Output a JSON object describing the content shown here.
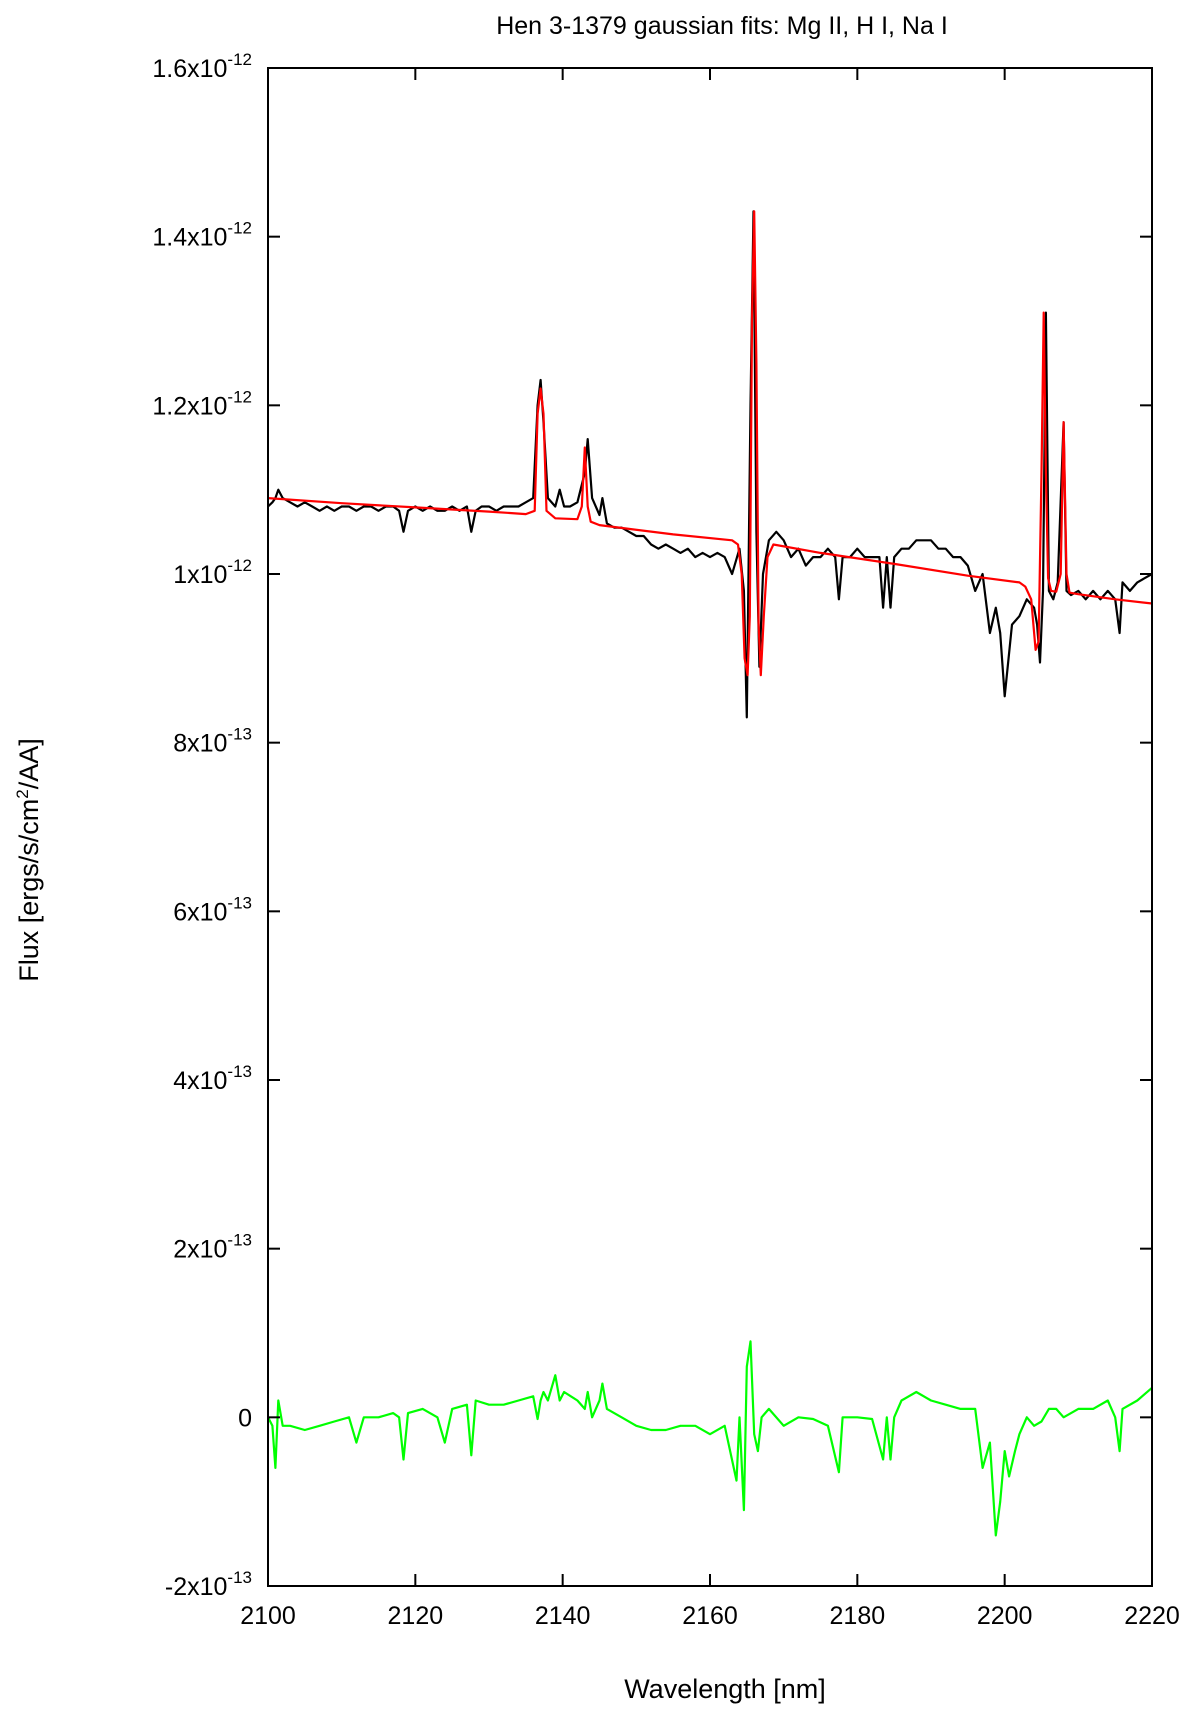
{
  "chart_data": {
    "type": "line",
    "title": "Hen 3-1379 gaussian fits: Mg II, H I, Na I",
    "xlabel": "Wavelength [nm]",
    "ylabel": {
      "base": "Flux [ergs/s/cm",
      "sup": "2",
      "rest": "/AA]"
    },
    "xlim": [
      2100,
      2220
    ],
    "ylim": [
      -2e-13,
      1.6e-12
    ],
    "grid": false,
    "x_ticks": [
      {
        "value": 2100,
        "label": "2100"
      },
      {
        "value": 2120,
        "label": "2120"
      },
      {
        "value": 2140,
        "label": "2140"
      },
      {
        "value": 2160,
        "label": "2160"
      },
      {
        "value": 2180,
        "label": "2180"
      },
      {
        "value": 2200,
        "label": "2200"
      },
      {
        "value": 2220,
        "label": "2220"
      }
    ],
    "y_ticks": [
      {
        "value": -2e-13,
        "mant": "-2x10",
        "exp": "-13"
      },
      {
        "value": 0,
        "mant": "0",
        "exp": ""
      },
      {
        "value": 2e-13,
        "mant": "2x10",
        "exp": "-13"
      },
      {
        "value": 4e-13,
        "mant": "4x10",
        "exp": "-13"
      },
      {
        "value": 6e-13,
        "mant": "6x10",
        "exp": "-13"
      },
      {
        "value": 8e-13,
        "mant": "8x10",
        "exp": "-13"
      },
      {
        "value": 1e-12,
        "mant": "1x10",
        "exp": "-12"
      },
      {
        "value": 1.2e-12,
        "mant": "1.2x10",
        "exp": "-12"
      },
      {
        "value": 1.4e-12,
        "mant": "1.4x10",
        "exp": "-12"
      },
      {
        "value": 1.6e-12,
        "mant": "1.6x10",
        "exp": "-12"
      }
    ],
    "series": [
      {
        "color": "#000000",
        "x": [
          2100,
          2100.6,
          2101,
          2101.4,
          2102,
          2103,
          2104,
          2105,
          2106,
          2107,
          2108,
          2109,
          2110,
          2111,
          2112,
          2113,
          2114,
          2115,
          2116,
          2117,
          2117.8,
          2118.4,
          2119,
          2120,
          2121,
          2122,
          2123,
          2124,
          2125,
          2126,
          2127,
          2127.6,
          2128.2,
          2129,
          2130,
          2131,
          2132,
          2133,
          2134,
          2135,
          2136,
          2136.6,
          2137,
          2137.4,
          2138,
          2139,
          2139.6,
          2140.2,
          2141,
          2142,
          2143,
          2143.4,
          2144,
          2145,
          2145.4,
          2146,
          2147,
          2148,
          2149,
          2150,
          2151,
          2152,
          2153,
          2154,
          2155,
          2156,
          2157,
          2158,
          2159,
          2160,
          2161,
          2162,
          2163,
          2164,
          2164.6,
          2165,
          2165.5,
          2165.9,
          2166.3,
          2166.7,
          2167.2,
          2168,
          2169,
          2170,
          2171,
          2172,
          2173,
          2174,
          2175,
          2176,
          2177,
          2177.5,
          2178,
          2179,
          2180,
          2181,
          2182,
          2183,
          2183.5,
          2184,
          2184.5,
          2185,
          2186,
          2187,
          2188,
          2189,
          2190,
          2191,
          2192,
          2193,
          2194,
          2195,
          2196,
          2197,
          2198,
          2198.8,
          2199.4,
          2200,
          2201,
          2202,
          2203,
          2204,
          2204.4,
          2204.8,
          2205.2,
          2205.6,
          2206,
          2206.6,
          2207.2,
          2208,
          2208.4,
          2209,
          2210,
          2211,
          2212,
          2213,
          2214,
          2215,
          2215.6,
          2216,
          2217,
          2218,
          2219,
          2220
        ],
        "y": [
          1.08e-12,
          1.085e-12,
          1.09e-12,
          1.1e-12,
          1.09e-12,
          1.085e-12,
          1.08e-12,
          1.085e-12,
          1.08e-12,
          1.075e-12,
          1.08e-12,
          1.075e-12,
          1.08e-12,
          1.08e-12,
          1.075e-12,
          1.08e-12,
          1.08e-12,
          1.075e-12,
          1.08e-12,
          1.08e-12,
          1.075e-12,
          1.05e-12,
          1.075e-12,
          1.08e-12,
          1.075e-12,
          1.08e-12,
          1.075e-12,
          1.075e-12,
          1.08e-12,
          1.075e-12,
          1.08e-12,
          1.05e-12,
          1.075e-12,
          1.08e-12,
          1.08e-12,
          1.075e-12,
          1.08e-12,
          1.08e-12,
          1.08e-12,
          1.085e-12,
          1.09e-12,
          1.2e-12,
          1.23e-12,
          1.18e-12,
          1.09e-12,
          1.08e-12,
          1.1e-12,
          1.08e-12,
          1.08e-12,
          1.085e-12,
          1.12e-12,
          1.16e-12,
          1.09e-12,
          1.07e-12,
          1.09e-12,
          1.06e-12,
          1.055e-12,
          1.055e-12,
          1.05e-12,
          1.045e-12,
          1.045e-12,
          1.035e-12,
          1.03e-12,
          1.035e-12,
          1.03e-12,
          1.025e-12,
          1.03e-12,
          1.02e-12,
          1.025e-12,
          1.02e-12,
          1.025e-12,
          1.02e-12,
          1e-12,
          1.03e-12,
          9.8e-13,
          8.3e-13,
          1.2e-12,
          1.43e-12,
          1.05e-12,
          8.9e-13,
          1e-12,
          1.04e-12,
          1.05e-12,
          1.04e-12,
          1.02e-12,
          1.03e-12,
          1.01e-12,
          1.02e-12,
          1.02e-12,
          1.03e-12,
          1.02e-12,
          9.7e-13,
          1.02e-12,
          1.02e-12,
          1.03e-12,
          1.02e-12,
          1.02e-12,
          1.02e-12,
          9.6e-13,
          1.02e-12,
          9.6e-13,
          1.02e-12,
          1.03e-12,
          1.03e-12,
          1.04e-12,
          1.04e-12,
          1.04e-12,
          1.03e-12,
          1.03e-12,
          1.02e-12,
          1.02e-12,
          1.01e-12,
          9.8e-13,
          1e-12,
          9.3e-13,
          9.6e-13,
          9.3e-13,
          8.55e-13,
          9.4e-13,
          9.5e-13,
          9.7e-13,
          9.6e-13,
          9.4e-13,
          8.95e-13,
          9.8e-13,
          1.31e-12,
          9.8e-13,
          9.7e-13,
          9.9e-13,
          1.18e-12,
          9.8e-13,
          9.75e-13,
          9.8e-13,
          9.7e-13,
          9.8e-13,
          9.7e-13,
          9.8e-13,
          9.7e-13,
          9.3e-13,
          9.9e-13,
          9.8e-13,
          9.9e-13,
          9.95e-13,
          1e-12
        ]
      },
      {
        "color": "#ff0000",
        "x": [
          2100,
          2110,
          2120,
          2130,
          2135,
          2136.2,
          2136.6,
          2137,
          2137.4,
          2137.8,
          2139,
          2142,
          2142.6,
          2143,
          2143.4,
          2143.8,
          2145,
          2155,
          2163,
          2163.8,
          2164.3,
          2164.7,
          2165.1,
          2165.4,
          2165.7,
          2166,
          2166.3,
          2166.6,
          2166.9,
          2167.3,
          2167.8,
          2168.6,
          2175,
          2185,
          2195,
          2202,
          2202.8,
          2203.6,
          2204.2,
          2204.6,
          2205,
          2205.3,
          2205.6,
          2205.9,
          2206.3,
          2207,
          2207.6,
          2208,
          2208.4,
          2208.8,
          2209.4,
          2210,
          2215,
          2220
        ],
        "y": [
          1.09e-12,
          1.084e-12,
          1.079e-12,
          1.074e-12,
          1.071e-12,
          1.075e-12,
          1.19e-12,
          1.22e-12,
          1.19e-12,
          1.075e-12,
          1.066e-12,
          1.065e-12,
          1.08e-12,
          1.15e-12,
          1.08e-12,
          1.062e-12,
          1.058e-12,
          1.047e-12,
          1.04e-12,
          1.035e-12,
          1e-12,
          9e-13,
          8.8e-13,
          9.5e-13,
          1.3e-12,
          1.43e-12,
          1.25e-12,
          9.4e-13,
          8.8e-13,
          9.5e-13,
          1.02e-12,
          1.035e-12,
          1.025e-12,
          1.012e-12,
          9.98e-13,
          9.9e-13,
          9.85e-13,
          9.7e-13,
          9.1e-13,
          9.2e-13,
          1.12e-12,
          1.31e-12,
          1.12e-12,
          9.95e-13,
          9.8e-13,
          9.79e-13,
          1e-12,
          1.18e-12,
          1e-12,
          9.78e-13,
          9.77e-13,
          9.76e-13,
          9.7e-13,
          9.65e-13
        ]
      },
      {
        "color": "#00ff00",
        "x": [
          2100,
          2100.6,
          2101,
          2101.4,
          2102,
          2103,
          2105,
          2107,
          2109,
          2111,
          2112,
          2113,
          2115,
          2117,
          2117.8,
          2118.4,
          2119,
          2121,
          2123,
          2124,
          2125,
          2127,
          2127.6,
          2128.2,
          2130,
          2132,
          2134,
          2136,
          2136.6,
          2137,
          2137.4,
          2138,
          2139,
          2139.6,
          2140.2,
          2142,
          2143,
          2143.4,
          2144,
          2145,
          2145.4,
          2146,
          2148,
          2150,
          2152,
          2154,
          2156,
          2158,
          2160,
          2162,
          2163.6,
          2164,
          2164.6,
          2165,
          2165.5,
          2166,
          2166.5,
          2167,
          2168,
          2170,
          2172,
          2174,
          2176,
          2177.5,
          2178,
          2180,
          2182,
          2183.5,
          2184,
          2184.5,
          2185,
          2186,
          2188,
          2190,
          2192,
          2194,
          2196,
          2197,
          2198,
          2198.8,
          2199.4,
          2200,
          2200.6,
          2201.4,
          2202,
          2203,
          2204,
          2205,
          2206,
          2207,
          2208,
          2210,
          2212,
          2214,
          2215,
          2215.6,
          2216,
          2218,
          2220
        ],
        "y": [
          0,
          -1e-14,
          -6e-14,
          2e-14,
          -1e-14,
          -1e-14,
          -1.5e-14,
          -1e-14,
          -5e-15,
          0,
          -3e-14,
          0,
          0,
          5e-15,
          0,
          -5e-14,
          5e-15,
          1e-14,
          0,
          -3e-14,
          1e-14,
          1.5e-14,
          -4.5e-14,
          2e-14,
          1.5e-14,
          1.5e-14,
          2e-14,
          2.5e-14,
          -2e-15,
          2e-14,
          3e-14,
          2e-14,
          5e-14,
          2e-14,
          3e-14,
          2e-14,
          1e-14,
          3e-14,
          0,
          2e-14,
          4e-14,
          1e-14,
          0,
          -1e-14,
          -1.5e-14,
          -1.5e-14,
          -1e-14,
          -1e-14,
          -2e-14,
          -1e-14,
          -7.5e-14,
          0,
          -1.1e-13,
          6e-14,
          9e-14,
          -2e-14,
          -4e-14,
          0,
          1e-14,
          -1e-14,
          0,
          -2e-15,
          -1e-14,
          -6.5e-14,
          0,
          0,
          -2e-15,
          -5e-14,
          0,
          -5e-14,
          0,
          2e-14,
          3e-14,
          2e-14,
          1.5e-14,
          1e-14,
          1e-14,
          -6e-14,
          -3e-14,
          -1.4e-13,
          -1e-13,
          -4e-14,
          -7e-14,
          -4e-14,
          -2e-14,
          0,
          -1e-14,
          -5e-15,
          1e-14,
          1e-14,
          0,
          1e-14,
          1e-14,
          2e-14,
          0,
          -4e-14,
          1e-14,
          2e-14,
          3.5e-14
        ]
      }
    ]
  }
}
